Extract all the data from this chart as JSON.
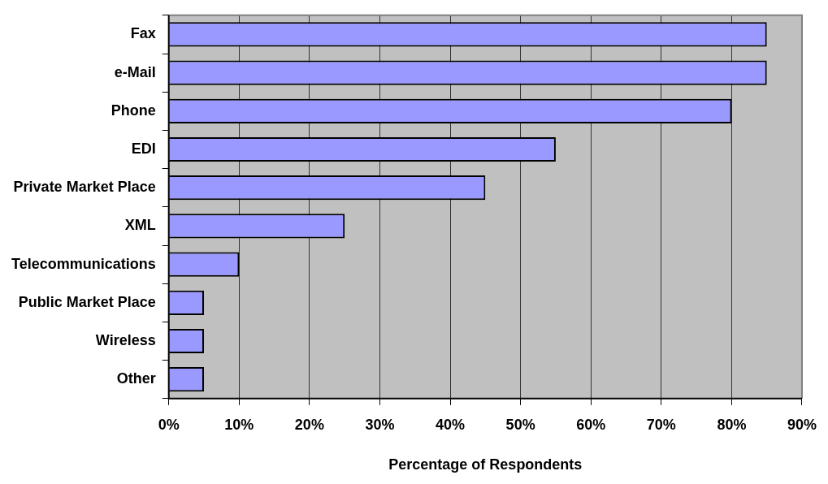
{
  "chart_data": {
    "type": "bar",
    "orientation": "horizontal",
    "xlabel": "Percentage of Respondents",
    "categories": [
      "Fax",
      "e-Mail",
      "Phone",
      "EDI",
      "Private Market Place",
      "XML",
      "Telecommunications",
      "Public Market Place",
      "Wireless",
      "Other"
    ],
    "values": [
      85,
      85,
      80,
      55,
      45,
      25,
      10,
      5,
      5,
      5
    ],
    "color": "#9999ff",
    "xlim": [
      0,
      90
    ],
    "xticks": [
      {
        "value": 0,
        "label": "0%"
      },
      {
        "value": 10,
        "label": "10%"
      },
      {
        "value": 20,
        "label": "20%"
      },
      {
        "value": 30,
        "label": "30%"
      },
      {
        "value": 40,
        "label": "40%"
      },
      {
        "value": 50,
        "label": "50%"
      },
      {
        "value": 60,
        "label": "60%"
      },
      {
        "value": 70,
        "label": "70%"
      },
      {
        "value": 80,
        "label": "80%"
      },
      {
        "value": 90,
        "label": "90%"
      }
    ],
    "grid": "x",
    "legend": false
  }
}
